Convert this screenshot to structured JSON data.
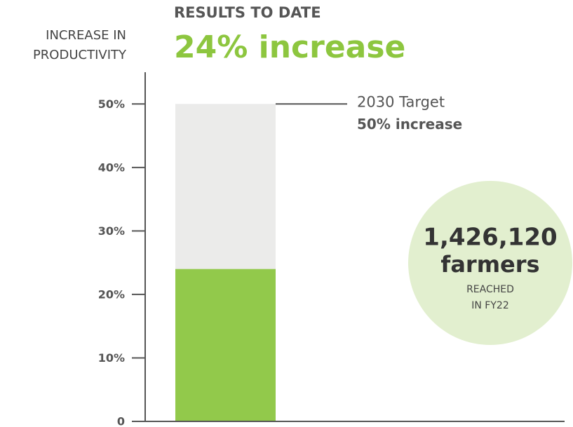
{
  "chart_data": {
    "type": "bar",
    "title": "RESULTS TO DATE",
    "ylabel": [
      "INCREASE IN",
      "PRODUCTIVITY"
    ],
    "categories": [
      null
    ],
    "values": [
      24
    ],
    "value_labels": [
      "24% increase"
    ],
    "color": "#92c94b",
    "target": {
      "value": 50,
      "label": "2030 Target",
      "value_label": "50% increase",
      "color": "#ebebea"
    },
    "ylim": [
      0,
      55
    ],
    "yticks": [
      0,
      {
        "value": 10,
        "label": "10%"
      },
      {
        "value": 20,
        "label": "20%"
      },
      {
        "value": 30,
        "label": "30%"
      },
      {
        "value": 40,
        "label": "40%"
      },
      {
        "value": 50,
        "label": "50%"
      }
    ],
    "callout": {
      "value": "1,426,120",
      "unit": "farmers",
      "text": [
        "REACHED",
        "IN FY22"
      ]
    }
  }
}
